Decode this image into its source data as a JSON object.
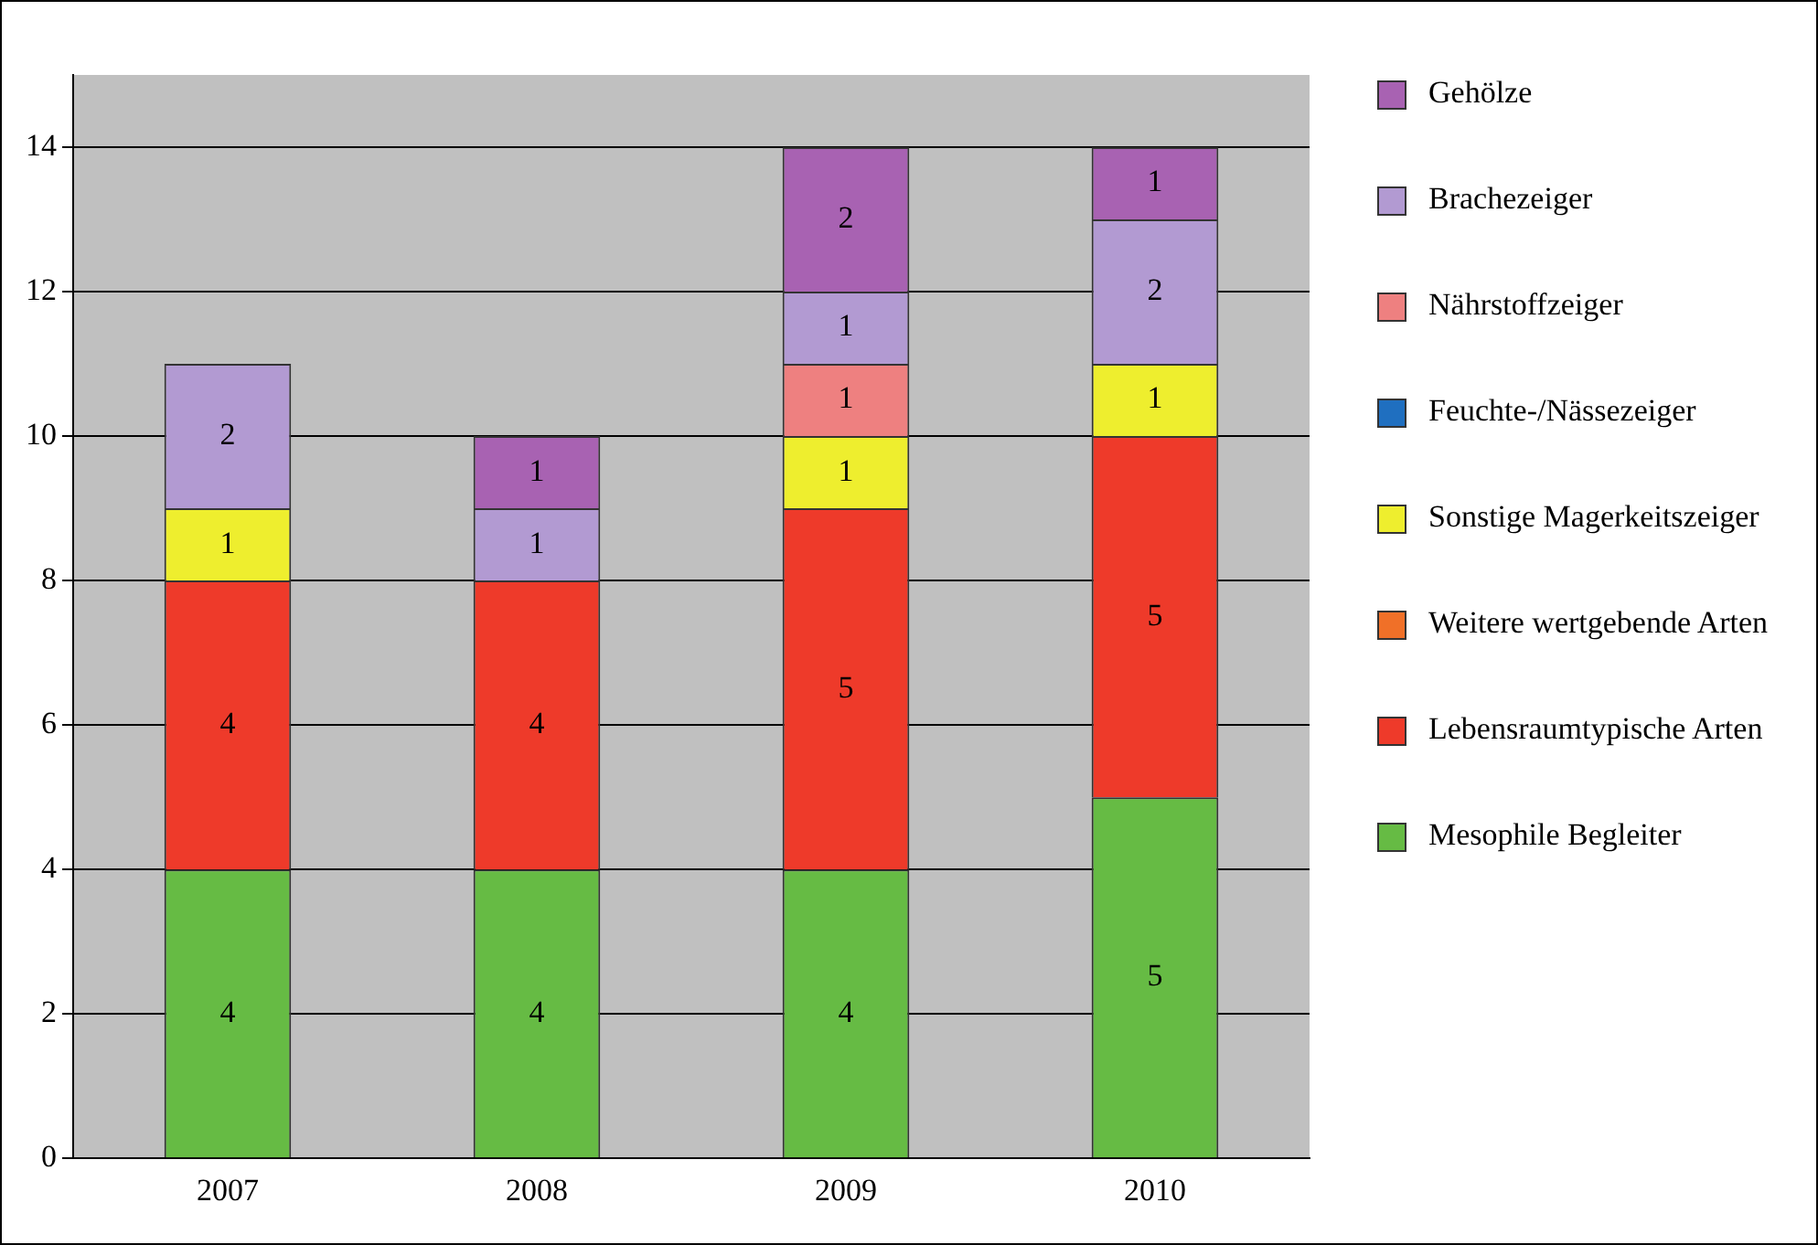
{
  "chart_data": {
    "type": "bar",
    "stacked": true,
    "categories": [
      "2007",
      "2008",
      "2009",
      "2010"
    ],
    "series": [
      {
        "name": "Mesophile Begleiter",
        "color": "#66bb44",
        "values": [
          4,
          4,
          4,
          5
        ]
      },
      {
        "name": "Lebensraumtypische Arten",
        "color": "#ee3a2a",
        "values": [
          4,
          4,
          5,
          5
        ]
      },
      {
        "name": "Weitere wertgebende Arten",
        "color": "#f07028",
        "values": [
          null,
          null,
          null,
          null
        ]
      },
      {
        "name": "Sonstige Magerkeitszeiger",
        "color": "#eeee2e",
        "values": [
          1,
          null,
          1,
          1
        ]
      },
      {
        "name": "Feuchte-/Nässezeiger",
        "color": "#1f6fc0",
        "values": [
          null,
          null,
          null,
          null
        ]
      },
      {
        "name": "Nährstoffzeiger",
        "color": "#ee8080",
        "values": [
          null,
          null,
          1,
          null
        ]
      },
      {
        "name": "Brachezeiger",
        "color": "#b29ad2",
        "values": [
          2,
          1,
          1,
          2
        ]
      },
      {
        "name": "Gehölze",
        "color": "#a862b2",
        "values": [
          null,
          1,
          2,
          1
        ]
      }
    ],
    "ylim": [
      0,
      15
    ],
    "yticks": [
      0,
      2,
      4,
      6,
      8,
      10,
      12,
      14
    ],
    "grid": "y",
    "legend": "right",
    "data_labels": true
  }
}
